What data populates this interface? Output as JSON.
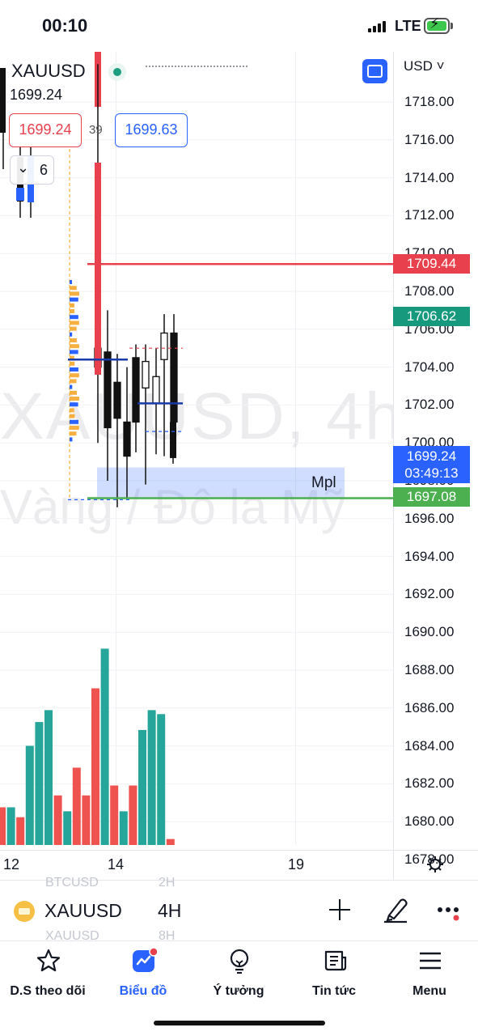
{
  "status_bar": {
    "time": "00:10",
    "network": "LTE"
  },
  "chart": {
    "symbol": "XAUUSD",
    "last_price": "1699.24",
    "bid": "1699.24",
    "spread": "39",
    "ask": "1699.63",
    "indicators_collapsed_count": "6",
    "currency": "USD",
    "watermark_main": "XAUUSD, 4h",
    "watermark_sub": "Vàng / Đô la Mỹ",
    "zone_label": "Mpl",
    "price_axis": [
      "1718.00",
      "1716.00",
      "1714.00",
      "1712.00",
      "1710.00",
      "1708.00",
      "1706.00",
      "1704.00",
      "1702.00",
      "1700.00",
      "1698.00",
      "1696.00",
      "1694.00",
      "1692.00",
      "1690.00",
      "1688.00",
      "1686.00",
      "1684.00",
      "1682.00",
      "1680.00",
      "1678.00"
    ],
    "badges": {
      "resistance": "1709.44",
      "level2": "1706.62",
      "current_price": "1699.24",
      "countdown": "03:49:13",
      "support": "1697.08"
    },
    "time_axis": [
      "12",
      "14",
      "19"
    ],
    "colors": {
      "up": "#26a69a",
      "down": "#ef5350",
      "resistance": "#e8414d",
      "support": "#4caf50",
      "zone": "#2962ff",
      "accent": "#2962ff"
    }
  },
  "chart_data": {
    "type": "candlestick",
    "symbol": "XAUUSD",
    "timeframe": "4h",
    "candles_ohlc": [
      {
        "o": 1705.0,
        "h": 1720.0,
        "l": 1700.0,
        "c": 1704.0
      },
      {
        "o": 1704.8,
        "h": 1707.0,
        "l": 1698.0,
        "c": 1700.8
      },
      {
        "o": 1703.2,
        "h": 1704.7,
        "l": 1696.6,
        "c": 1701.3
      },
      {
        "o": 1701.1,
        "h": 1704.0,
        "l": 1697.0,
        "c": 1699.3
      },
      {
        "o": 1704.5,
        "h": 1705.2,
        "l": 1699.5,
        "c": 1701.1
      },
      {
        "o": 1702.9,
        "h": 1705.2,
        "l": 1697.8,
        "c": 1704.3
      },
      {
        "o": 1702.1,
        "h": 1705.0,
        "l": 1699.4,
        "c": 1703.5
      },
      {
        "o": 1704.4,
        "h": 1706.8,
        "l": 1699.3,
        "c": 1705.8
      },
      {
        "o": 1705.8,
        "h": 1706.8,
        "l": 1700.8,
        "c": 1701.1
      },
      {
        "o": 1701.1,
        "h": 1701.1,
        "l": 1698.9,
        "c": 1699.2
      }
    ],
    "volume_relative": [
      0.19,
      0.19,
      0.14,
      0.5,
      0.62,
      0.68,
      0.25,
      0.17,
      0.39,
      0.25,
      0.79,
      0.99,
      0.3,
      0.17,
      0.3,
      0.58,
      0.68,
      0.66,
      0.03
    ],
    "horizontal_levels": [
      1709.44,
      1706.62,
      1699.24,
      1697.08
    ],
    "zone": {
      "from": 1697.08,
      "to": 1698.7,
      "label": "Mpl"
    },
    "ylim": [
      1678,
      1720
    ]
  },
  "symbol_bar": {
    "ghost_above_symbol": "BTCUSD",
    "ghost_above_tf": "2H",
    "symbol": "XAUUSD",
    "timeframe": "4H",
    "ghost_below_symbol": "XAUUSD",
    "ghost_below_tf": "8H"
  },
  "nav": [
    {
      "label": "D.S theo dõi",
      "icon": "star-icon"
    },
    {
      "label": "Biểu đồ",
      "icon": "chart-icon",
      "active": true
    },
    {
      "label": "Ý tưởng",
      "icon": "lightbulb-icon"
    },
    {
      "label": "Tin tức",
      "icon": "news-icon"
    },
    {
      "label": "Menu",
      "icon": "menu-icon"
    }
  ]
}
